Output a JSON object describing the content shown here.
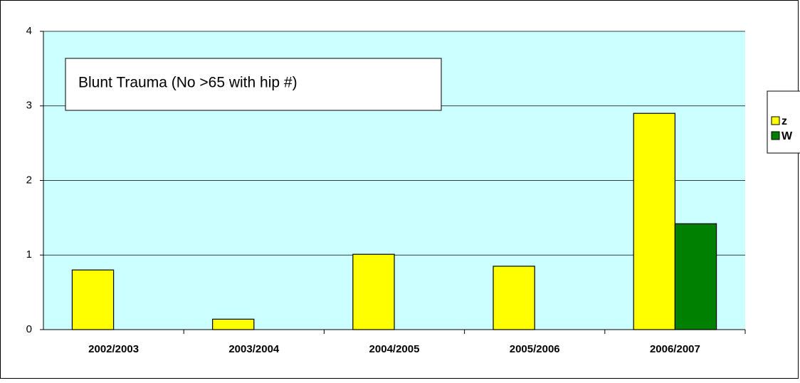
{
  "chart_data": {
    "type": "bar",
    "annotation": "Blunt Trauma (No >65 with hip #)",
    "categories": [
      "2002/2003",
      "2003/2004",
      "2004/2005",
      "2005/2006",
      "2006/2007"
    ],
    "series": [
      {
        "name": "z",
        "color": "#ffff00",
        "values": [
          0.8,
          0.14,
          1.01,
          0.85,
          2.9
        ]
      },
      {
        "name": "W",
        "color": "#008000",
        "values": [
          null,
          null,
          null,
          null,
          1.42
        ]
      }
    ],
    "ylim": [
      0,
      4
    ],
    "yticks": [
      0,
      1,
      2,
      3,
      4
    ],
    "grid": true,
    "legend": "right"
  }
}
